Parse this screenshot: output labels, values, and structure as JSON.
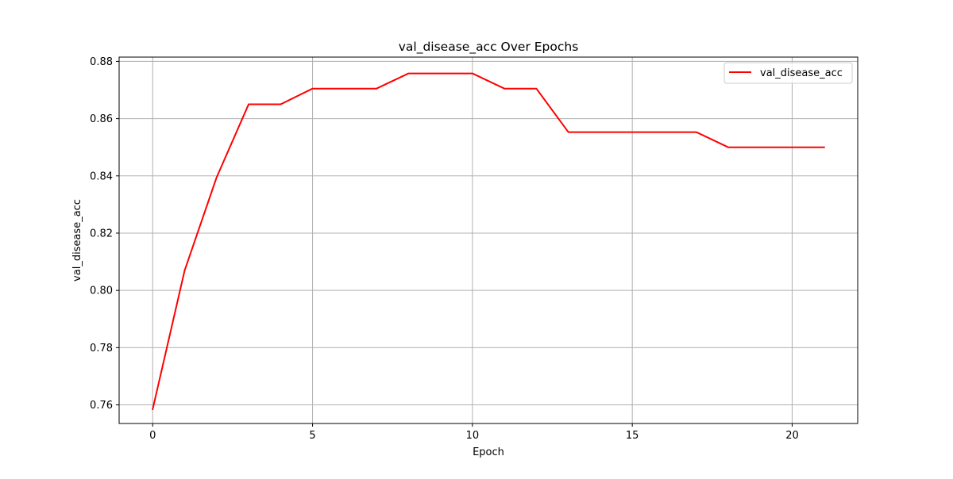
{
  "chart_data": {
    "type": "line",
    "title": "val_disease_acc Over Epochs",
    "xlabel": "Epoch",
    "ylabel": "val_disease_acc",
    "xlim": [
      -1.05,
      22.05
    ],
    "ylim": [
      0.7535,
      0.8815
    ],
    "xticks": [
      0,
      5,
      10,
      15,
      20
    ],
    "xtick_labels": [
      "0",
      "5",
      "10",
      "15",
      "20"
    ],
    "yticks": [
      0.76,
      0.78,
      0.8,
      0.82,
      0.84,
      0.86,
      0.88
    ],
    "ytick_labels": [
      "0.76",
      "0.78",
      "0.80",
      "0.82",
      "0.84",
      "0.86",
      "0.88"
    ],
    "grid": true,
    "legend_position": "top-right",
    "series": [
      {
        "name": "val_disease_acc",
        "color": "#ff0000",
        "x": [
          0,
          1,
          2,
          3,
          4,
          5,
          6,
          7,
          8,
          9,
          10,
          11,
          12,
          13,
          14,
          15,
          16,
          17,
          18,
          19,
          20,
          21
        ],
        "values": [
          0.7585,
          0.807,
          0.8395,
          0.865,
          0.865,
          0.8705,
          0.8705,
          0.8705,
          0.8758,
          0.8758,
          0.8758,
          0.8705,
          0.8705,
          0.8553,
          0.8553,
          0.8553,
          0.8553,
          0.8553,
          0.85,
          0.85,
          0.85,
          0.85
        ]
      }
    ]
  }
}
